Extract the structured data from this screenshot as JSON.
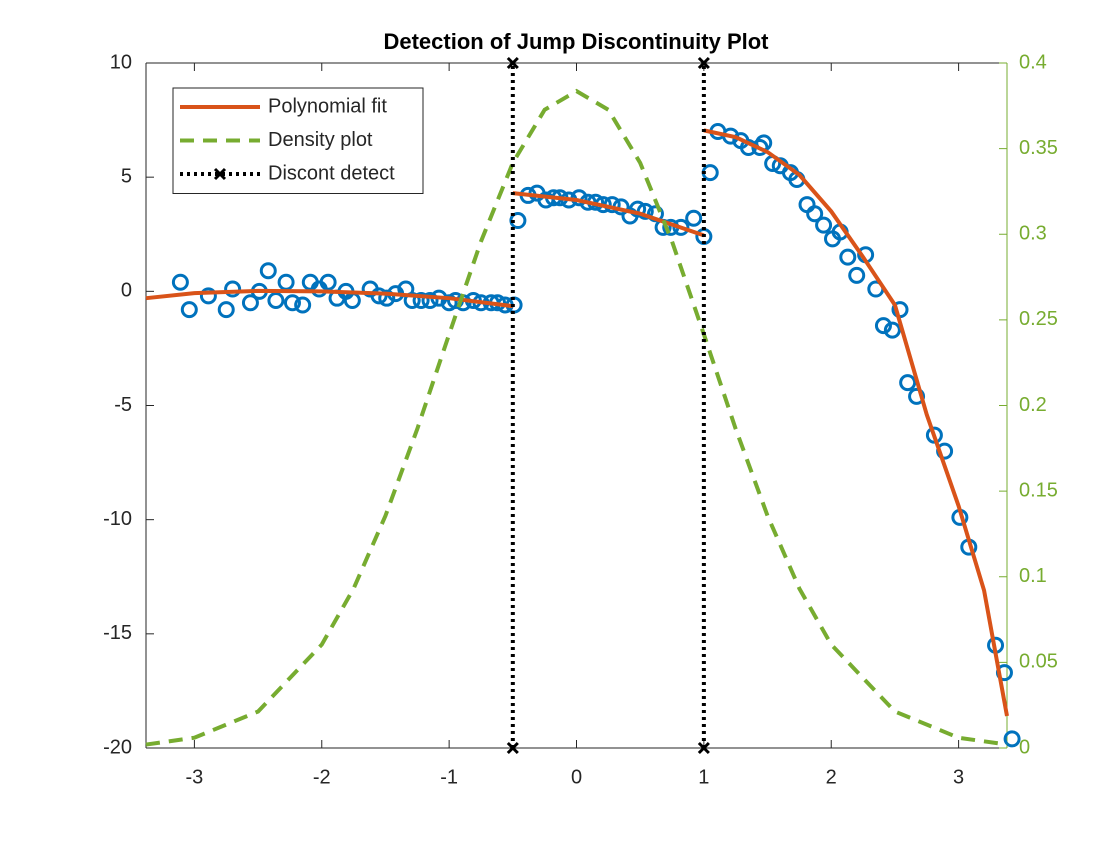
{
  "chart_data": {
    "type": "line",
    "title": "Detection of Jump Discontinuity Plot",
    "xlim": [
      -3.38,
      3.38
    ],
    "xticks": [
      -3,
      -2,
      -1,
      0,
      1,
      2,
      3
    ],
    "ylim": [
      -20,
      10
    ],
    "yticks": [
      -20,
      -15,
      -10,
      -5,
      0,
      5,
      10
    ],
    "y2lim": [
      0,
      0.4
    ],
    "y2ticks": [
      0,
      0.05,
      0.1,
      0.15,
      0.2,
      0.25,
      0.3,
      0.35,
      0.4
    ],
    "y2color": "#77AC30",
    "legend": "upper-left",
    "series": [
      {
        "color": "#0072BD",
        "marker": "o",
        "x": [
          -3.11,
          -3.04,
          -2.89,
          -2.75,
          -2.7,
          -2.56,
          -2.49,
          -2.42,
          -2.36,
          -2.28,
          -2.23,
          -2.15,
          -2.09,
          -2.02,
          -1.95,
          -1.88,
          -1.81,
          -1.76,
          -1.62,
          -1.55,
          -1.49,
          -1.42,
          -1.34,
          -1.29,
          -1.22,
          -1.15,
          -1.08,
          -1.0,
          -0.95,
          -0.89,
          -0.81,
          -0.75,
          -0.67,
          -0.62,
          -0.56,
          -0.49,
          -0.46,
          -0.38,
          -0.31,
          -0.24,
          -0.18,
          -0.13,
          -0.06,
          0.02,
          0.09,
          0.15,
          0.21,
          0.28,
          0.35,
          0.42,
          0.48,
          0.54,
          0.62,
          0.68,
          0.74,
          0.82,
          0.92,
          1.0,
          1.05,
          1.11,
          1.21,
          1.29,
          1.35,
          1.44,
          1.47,
          1.54,
          1.6,
          1.68,
          1.73,
          1.81,
          1.87,
          1.94,
          2.01,
          2.07,
          2.13,
          2.2,
          2.27,
          2.35,
          2.41,
          2.48,
          2.54,
          2.6,
          2.67,
          2.81,
          2.89,
          3.01,
          3.08,
          3.29,
          3.36,
          3.42
        ],
        "values": [
          0.4,
          -0.8,
          -0.2,
          -0.8,
          0.1,
          -0.5,
          0,
          0.9,
          -0.4,
          0.4,
          -0.5,
          -0.6,
          0.4,
          0.1,
          0.4,
          -0.3,
          0,
          -0.4,
          0.1,
          -0.2,
          -0.3,
          -0.1,
          0.1,
          -0.4,
          -0.4,
          -0.4,
          -0.3,
          -0.5,
          -0.4,
          -0.5,
          -0.4,
          -0.5,
          -0.5,
          -0.5,
          -0.6,
          -0.6,
          3.1,
          4.2,
          4.3,
          4.0,
          4.1,
          4.1,
          4.0,
          4.1,
          3.9,
          3.9,
          3.8,
          3.8,
          3.7,
          3.3,
          3.6,
          3.5,
          3.4,
          2.8,
          2.8,
          2.8,
          3.2,
          2.4,
          5.2,
          7.0,
          6.8,
          6.6,
          6.3,
          6.3,
          6.5,
          5.6,
          5.5,
          5.2,
          4.9,
          3.8,
          3.4,
          2.9,
          2.3,
          2.6,
          1.5,
          0.7,
          1.6,
          0.1,
          -1.5,
          -1.7,
          -0.8,
          -4.0,
          -4.6,
          -6.3,
          -7.0,
          -9.9,
          -11.2,
          -15.5,
          -16.7,
          -19.6
        ]
      },
      {
        "name": "Polynomial fit",
        "color": "#D95319",
        "line": "solid",
        "x": [
          -3.38,
          -3,
          -2.5,
          -2,
          -1.5,
          -1,
          -0.5,
          null,
          -0.5,
          0,
          0.5,
          1,
          null,
          1,
          1.25,
          1.5,
          1.75,
          2,
          2.25,
          2.5,
          2.75,
          3,
          3.2,
          3.38
        ],
        "values": [
          -0.3,
          -0.08,
          0.02,
          0,
          -0.1,
          -0.3,
          -0.65,
          null,
          4.3,
          4.0,
          3.4,
          2.45,
          null,
          7.05,
          6.75,
          6.1,
          5.1,
          3.5,
          1.5,
          -0.6,
          -5.4,
          -9.4,
          -13.1,
          -18.6
        ]
      },
      {
        "name": "Density plot",
        "color": "#77AC30",
        "line": "dashed",
        "axis": "y2",
        "x": [
          -3.38,
          -3,
          -2.5,
          -2,
          -1.75,
          -1.5,
          -1.25,
          -1,
          -0.75,
          -0.5,
          -0.25,
          0,
          0.25,
          0.5,
          0.75,
          1,
          1.25,
          1.5,
          1.75,
          2,
          2.5,
          3,
          3.38
        ],
        "values": [
          0.002,
          0.006,
          0.0213,
          0.0604,
          0.0931,
          0.1356,
          0.1863,
          0.2416,
          0.2958,
          0.3417,
          0.3727,
          0.3836,
          0.3727,
          0.3417,
          0.2958,
          0.2416,
          0.1863,
          0.1356,
          0.0931,
          0.0604,
          0.0213,
          0.006,
          0.002
        ]
      },
      {
        "name": "Discont detect",
        "color": "#000000",
        "line": "dotted",
        "marker": "x",
        "x": [
          -0.5,
          -0.5,
          null,
          1,
          1
        ],
        "values": [
          -20,
          10,
          null,
          -20,
          10
        ]
      }
    ]
  }
}
